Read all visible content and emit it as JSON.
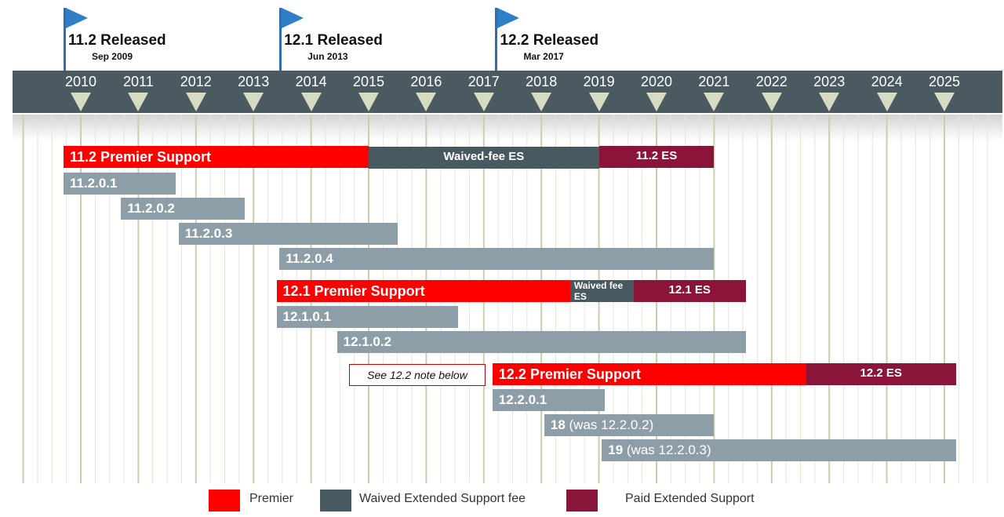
{
  "flags": [
    {
      "title": "11.2 Released",
      "date": "Sep 2009",
      "year": 2009.7
    },
    {
      "title": "12.1 Released",
      "date": "Jun 2013",
      "year": 2013.45
    },
    {
      "title": "12.2 Released",
      "date": "Mar 2017",
      "year": 2017.2
    }
  ],
  "years": [
    "2010",
    "2011",
    "2012",
    "2013",
    "2014",
    "2015",
    "2016",
    "2017",
    "2018",
    "2019",
    "2020",
    "2021",
    "2022",
    "2023",
    "2024",
    "2025"
  ],
  "bars": [
    {
      "label": "11.2 Premier Support",
      "start": 2009.7,
      "end": 2015.0,
      "kind": "premier",
      "row": 0,
      "align": "left"
    },
    {
      "label": "Waived-fee ES",
      "start": 2015.0,
      "end": 2019.0,
      "kind": "waived",
      "row": 0,
      "align": "center"
    },
    {
      "label": "11.2 ES",
      "start": 2019.0,
      "end": 2021.0,
      "kind": "paid",
      "row": 0,
      "align": "center"
    },
    {
      "label": "11.2.0.1",
      "start": 2009.7,
      "end": 2011.65,
      "kind": "version",
      "row": 1,
      "align": "left"
    },
    {
      "label": "11.2.0.2",
      "start": 2010.7,
      "end": 2012.85,
      "kind": "version",
      "row": 2,
      "align": "left"
    },
    {
      "label": "11.2.0.3",
      "start": 2011.7,
      "end": 2015.5,
      "kind": "version",
      "row": 3,
      "align": "left"
    },
    {
      "label": "11.2.0.4",
      "start": 2013.45,
      "end": 2021.0,
      "kind": "version",
      "row": 4,
      "align": "left"
    },
    {
      "label": "12.1 Premier Support",
      "start": 2013.4,
      "end": 2018.5,
      "kind": "premier",
      "row": 5,
      "align": "left"
    },
    {
      "label": "Waived fee ES",
      "start": 2018.5,
      "end": 2019.6,
      "kind": "waived",
      "row": 5,
      "align": "small"
    },
    {
      "label": "12.1 ES",
      "start": 2019.6,
      "end": 2021.55,
      "kind": "paid",
      "row": 5,
      "align": "center"
    },
    {
      "label": "12.1.0.1",
      "start": 2013.4,
      "end": 2016.55,
      "kind": "version",
      "row": 6,
      "align": "left"
    },
    {
      "label": "12.1.0.2",
      "start": 2014.45,
      "end": 2021.55,
      "kind": "version",
      "row": 7,
      "align": "left"
    },
    {
      "label": "12.2 Premier Support",
      "start": 2017.15,
      "end": 2022.6,
      "kind": "premier",
      "row": 8,
      "align": "left"
    },
    {
      "label": "12.2 ES",
      "start": 2022.6,
      "end": 2025.2,
      "kind": "paid",
      "row": 8,
      "align": "center"
    },
    {
      "label": "12.2.0.1",
      "start": 2017.15,
      "end": 2019.1,
      "kind": "version",
      "row": 9,
      "align": "left"
    },
    {
      "label": "18",
      "suffix": " (was 12.2.0.2)",
      "start": 2018.05,
      "end": 2021.0,
      "kind": "version",
      "row": 10,
      "align": "left"
    },
    {
      "label": "19",
      "suffix": " (was 12.2.0.3)",
      "start": 2019.05,
      "end": 2025.2,
      "kind": "version",
      "row": 11,
      "align": "left"
    }
  ],
  "note": "See 12.2 note below",
  "legend": [
    {
      "label": "Premier",
      "color": "#ff0000"
    },
    {
      "label": "Waived Extended Support fee",
      "color": "#495960"
    },
    {
      "label": "Paid Extended Support",
      "color": "#8a1538"
    }
  ],
  "colors": {
    "premier": "#ff0000",
    "waived": "#495960",
    "paid": "#8a1538",
    "version": "#8e9ea8",
    "band": "#4b5a61"
  }
}
